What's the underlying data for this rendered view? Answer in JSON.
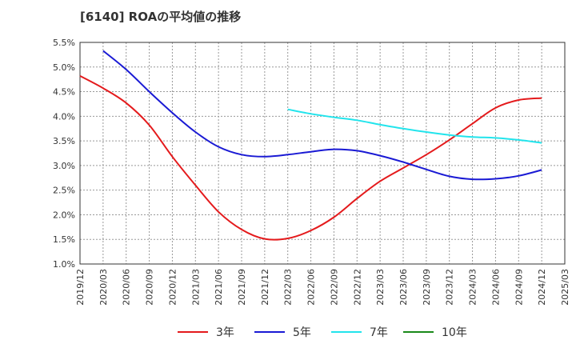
{
  "chart_data": {
    "type": "line",
    "title": "[6140]  ROAの平均値の推移",
    "xlabel": "",
    "ylabel": "",
    "x": [
      "2019/12",
      "2020/03",
      "2020/06",
      "2020/09",
      "2020/12",
      "2021/03",
      "2021/06",
      "2021/09",
      "2021/12",
      "2022/03",
      "2022/06",
      "2022/09",
      "2022/12",
      "2023/03",
      "2023/06",
      "2023/09",
      "2023/12",
      "2024/03",
      "2024/06",
      "2024/09",
      "2024/12",
      "2025/03"
    ],
    "y_ticks": [
      "1.0%",
      "1.5%",
      "2.0%",
      "2.5%",
      "3.0%",
      "3.5%",
      "4.0%",
      "4.5%",
      "5.0%",
      "5.5%"
    ],
    "ylim": [
      1.0,
      5.5
    ],
    "grid": true,
    "legend_position": "bottom",
    "series": [
      {
        "name": "3年",
        "color": "#e41a1c",
        "values": [
          4.82,
          4.57,
          4.27,
          3.82,
          3.18,
          2.6,
          2.06,
          1.7,
          1.51,
          1.52,
          1.68,
          1.95,
          2.33,
          2.68,
          2.95,
          3.22,
          3.52,
          3.85,
          4.17,
          4.33,
          4.37,
          null
        ]
      },
      {
        "name": "5年",
        "color": "#1a1ad4",
        "values": [
          null,
          5.33,
          4.95,
          4.5,
          4.07,
          3.68,
          3.38,
          3.22,
          3.18,
          3.22,
          3.28,
          3.33,
          3.3,
          3.2,
          3.07,
          2.92,
          2.78,
          2.72,
          2.73,
          2.79,
          2.91,
          null
        ]
      },
      {
        "name": "7年",
        "color": "#22e4ec",
        "values": [
          null,
          null,
          null,
          null,
          null,
          null,
          null,
          null,
          null,
          4.14,
          4.05,
          3.98,
          3.92,
          3.83,
          3.75,
          3.68,
          3.62,
          3.58,
          3.56,
          3.52,
          3.46,
          null
        ]
      },
      {
        "name": "10年",
        "color": "#1a8a1a",
        "values": [
          null,
          null,
          null,
          null,
          null,
          null,
          null,
          null,
          null,
          null,
          null,
          null,
          null,
          null,
          null,
          null,
          null,
          null,
          null,
          null,
          null,
          null
        ]
      }
    ]
  }
}
